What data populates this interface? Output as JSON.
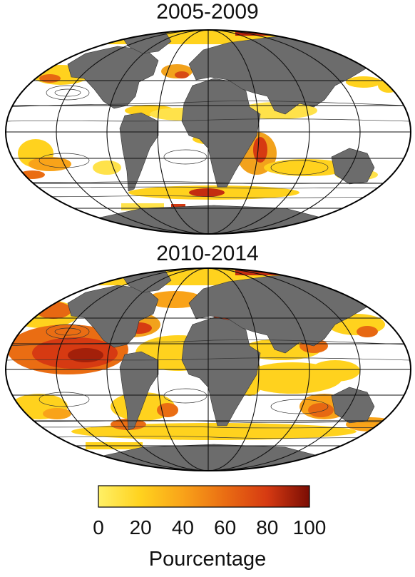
{
  "panels": [
    {
      "title": "2005-2009"
    },
    {
      "title": "2010-2014"
    }
  ],
  "colorbar": {
    "label": "Pourcentage",
    "ticks": [
      "0",
      "20",
      "40",
      "60",
      "80",
      "100"
    ],
    "min": 0,
    "max": 100,
    "colors": [
      "#fff066",
      "#ffd21e",
      "#f9a319",
      "#ea6d13",
      "#d63a12",
      "#7a0d04"
    ]
  },
  "colors": {
    "land": "#6c6c6c",
    "ocean": "#ffffff",
    "grid": "#111111"
  }
}
